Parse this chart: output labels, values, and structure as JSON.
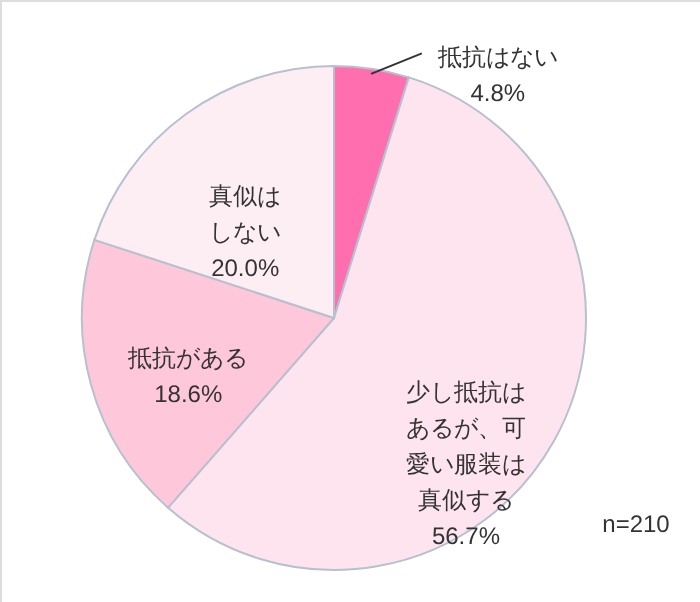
{
  "chart_data": {
    "type": "pie",
    "categories": [
      "抵抗はない",
      "少し抵抗はあるが、可愛い服装は真似する",
      "抵抗がある",
      "真似はしない"
    ],
    "values": [
      4.8,
      56.7,
      18.6,
      20.0
    ],
    "value_labels": [
      "4.8%",
      "56.7%",
      "18.6%",
      "20.0%"
    ],
    "colors": [
      "#ff6fb0",
      "#fde4ee",
      "#ffc8da",
      "#fdeef4"
    ],
    "annotations": [
      "n=210"
    ]
  }
}
